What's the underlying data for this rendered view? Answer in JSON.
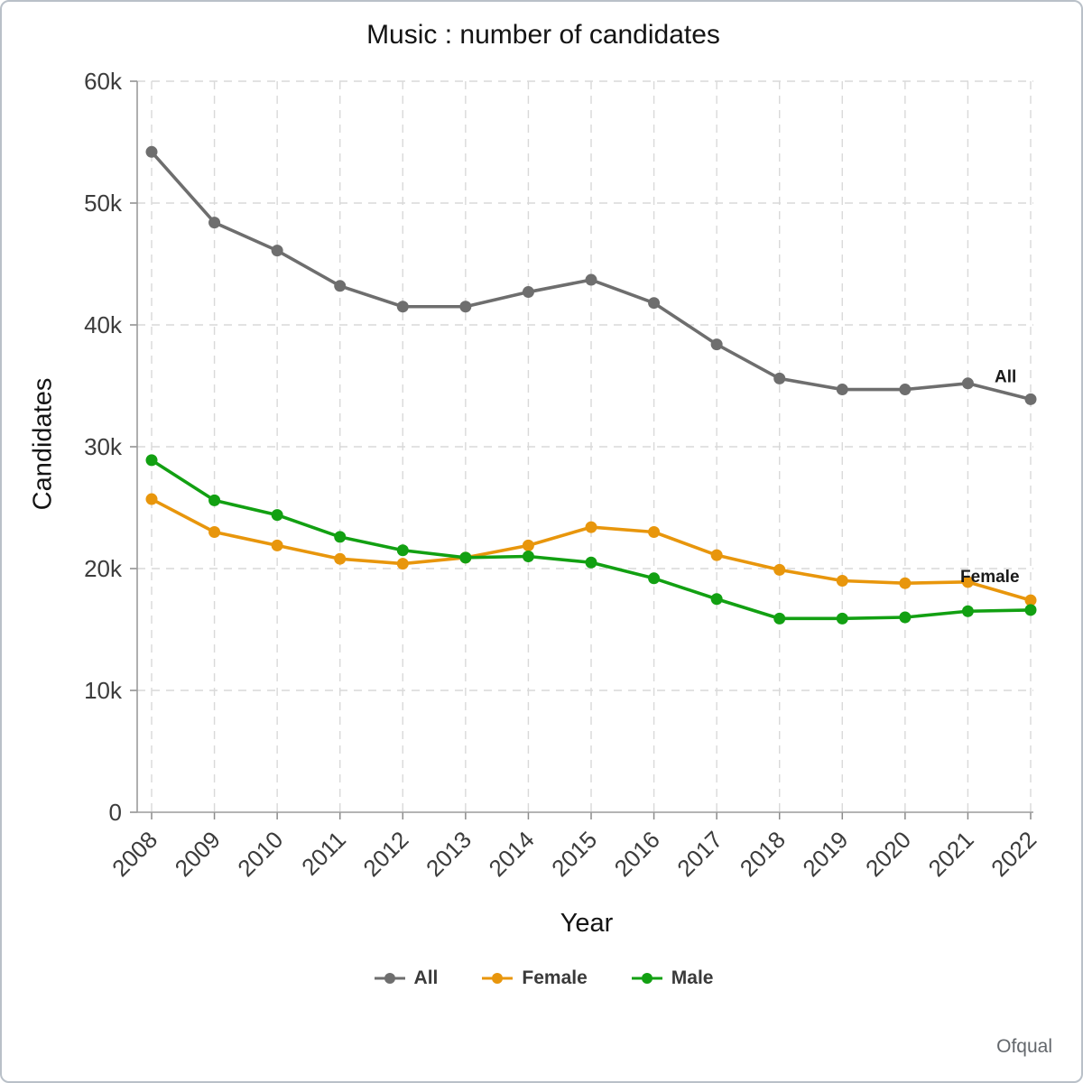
{
  "footer": {
    "source": "Ofqual"
  },
  "chart_data": {
    "type": "line",
    "title": "Music : number of candidates",
    "xlabel": "Year",
    "ylabel": "Candidates",
    "x": [
      2008,
      2009,
      2010,
      2011,
      2012,
      2013,
      2014,
      2015,
      2016,
      2017,
      2018,
      2019,
      2020,
      2021,
      2022
    ],
    "ylim": [
      0,
      60000
    ],
    "yticks": [
      0,
      10000,
      20000,
      30000,
      40000,
      50000,
      60000
    ],
    "ytick_labels": [
      "0",
      "10k",
      "20k",
      "30k",
      "40k",
      "50k",
      "60k"
    ],
    "grid": true,
    "legend_position": "bottom",
    "series": [
      {
        "name": "All",
        "color": "#6e6e6e",
        "values": [
          54200,
          48400,
          46100,
          43200,
          41500,
          41500,
          42700,
          43700,
          41800,
          38400,
          35600,
          34700,
          34700,
          35200,
          33900
        ]
      },
      {
        "name": "Female",
        "color": "#e8960c",
        "values": [
          25700,
          23000,
          21900,
          20800,
          20400,
          20900,
          21900,
          23400,
          23000,
          21100,
          19900,
          19000,
          18800,
          18900,
          17400
        ]
      },
      {
        "name": "Male",
        "color": "#12a012",
        "values": [
          28900,
          25600,
          24400,
          22600,
          21500,
          20900,
          21000,
          20500,
          19200,
          17500,
          15900,
          15900,
          16000,
          16500,
          16600
        ]
      }
    ],
    "annotations": [
      {
        "text": "All",
        "year": 2021.6,
        "value": 35300
      },
      {
        "text": "Female",
        "year": 2021.35,
        "value": 18900
      }
    ]
  }
}
